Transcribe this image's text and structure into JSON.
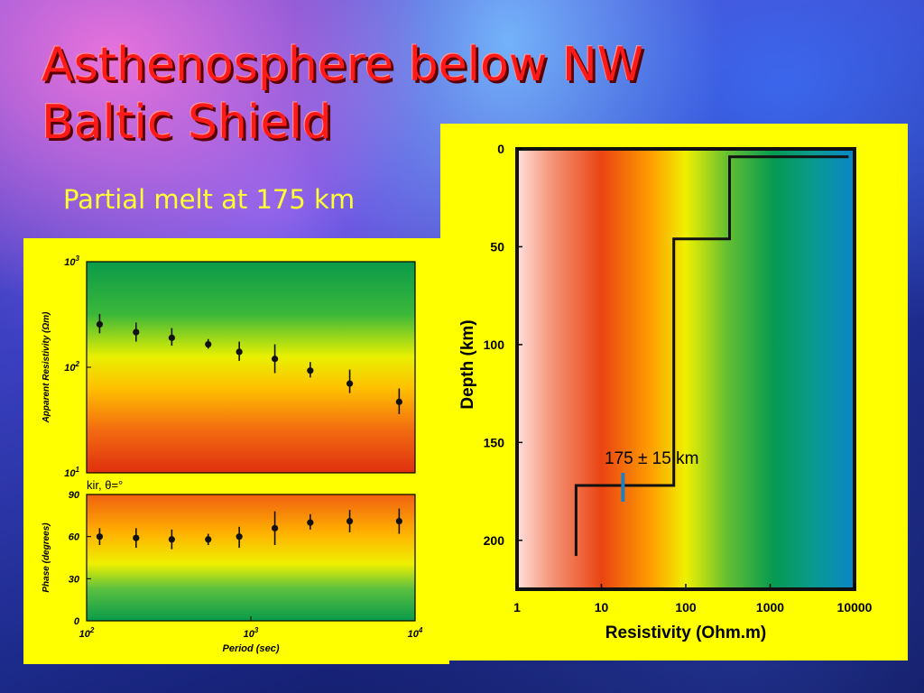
{
  "slide": {
    "title": "Asthenosphere below NW Baltic Shield",
    "subtitle": "Partial melt at 175 km"
  },
  "chart_data": [
    {
      "type": "scatter",
      "panel": "apparent-resistivity",
      "ylabel": "Apparent Resistivity (Ωm)",
      "xscale": "log",
      "yscale": "log",
      "xlim": [
        100,
        10000
      ],
      "ylim": [
        10,
        1000
      ],
      "yticks": [
        {
          "value": 1000,
          "label": "10",
          "exp": "3"
        },
        {
          "value": 100,
          "label": "10",
          "exp": "2"
        },
        {
          "value": 10,
          "label": "10",
          "exp": "1"
        }
      ],
      "background": "vertical gradient green (top) to yellow to orange to red (bottom)",
      "x": [
        120,
        200,
        330,
        550,
        850,
        1400,
        2300,
        4000,
        8000
      ],
      "y": [
        255,
        215,
        190,
        165,
        140,
        120,
        93,
        70,
        47
      ],
      "yerr_low": [
        210,
        175,
        160,
        150,
        115,
        88,
        80,
        57,
        36
      ],
      "yerr_high": [
        320,
        265,
        235,
        185,
        175,
        165,
        112,
        95,
        63
      ]
    },
    {
      "type": "scatter",
      "panel": "phase",
      "annotation": "kir, θ=°",
      "xlabel": "Period (sec)",
      "ylabel": "Phase (degrees)",
      "xscale": "log",
      "xlim": [
        100,
        10000
      ],
      "ylim": [
        0,
        90
      ],
      "xticks": [
        {
          "value": 100,
          "label": "10",
          "exp": "2"
        },
        {
          "value": 1000,
          "label": "10",
          "exp": "3"
        },
        {
          "value": 10000,
          "label": "10",
          "exp": "4"
        }
      ],
      "yticks": [
        0,
        30,
        60,
        90
      ],
      "background": "vertical gradient orange (top) to yellow to green (bottom)",
      "x": [
        120,
        200,
        330,
        550,
        850,
        1400,
        2300,
        4000,
        8000
      ],
      "y": [
        60,
        59,
        58,
        58,
        60,
        66,
        70,
        71,
        71
      ],
      "yerr_low": [
        54,
        52,
        51,
        54,
        52,
        54,
        65,
        63,
        62
      ],
      "yerr_high": [
        66,
        66,
        65,
        62,
        67,
        78,
        76,
        79,
        80
      ]
    },
    {
      "type": "line",
      "panel": "resistivity-depth-model",
      "xlabel": "Resistivity (Ohm.m)",
      "ylabel": "Depth (km)",
      "xscale": "log",
      "xlim": [
        1,
        10000
      ],
      "ylim": [
        0,
        225
      ],
      "xticks": [
        1,
        10,
        100,
        1000,
        10000
      ],
      "xtick_labels": [
        "1",
        "10",
        "100",
        "1000",
        "10000"
      ],
      "yticks": [
        0,
        50,
        100,
        150,
        200
      ],
      "background": "horizontal gradient pink (left) to red to orange to yellow to green to blue (right)",
      "model_steps": [
        {
          "resistivity": 8500,
          "depth": 4
        },
        {
          "resistivity": 330,
          "depth": 4
        },
        {
          "resistivity": 330,
          "depth": 46
        },
        {
          "resistivity": 72,
          "depth": 46
        },
        {
          "resistivity": 72,
          "depth": 172
        },
        {
          "resistivity": 5,
          "depth": 172
        },
        {
          "resistivity": 5,
          "depth": 208
        }
      ],
      "marker": {
        "resistivity": 18,
        "depth": 172,
        "color": "#1f7fbf"
      },
      "annotation": "175 ± 15 km"
    }
  ]
}
